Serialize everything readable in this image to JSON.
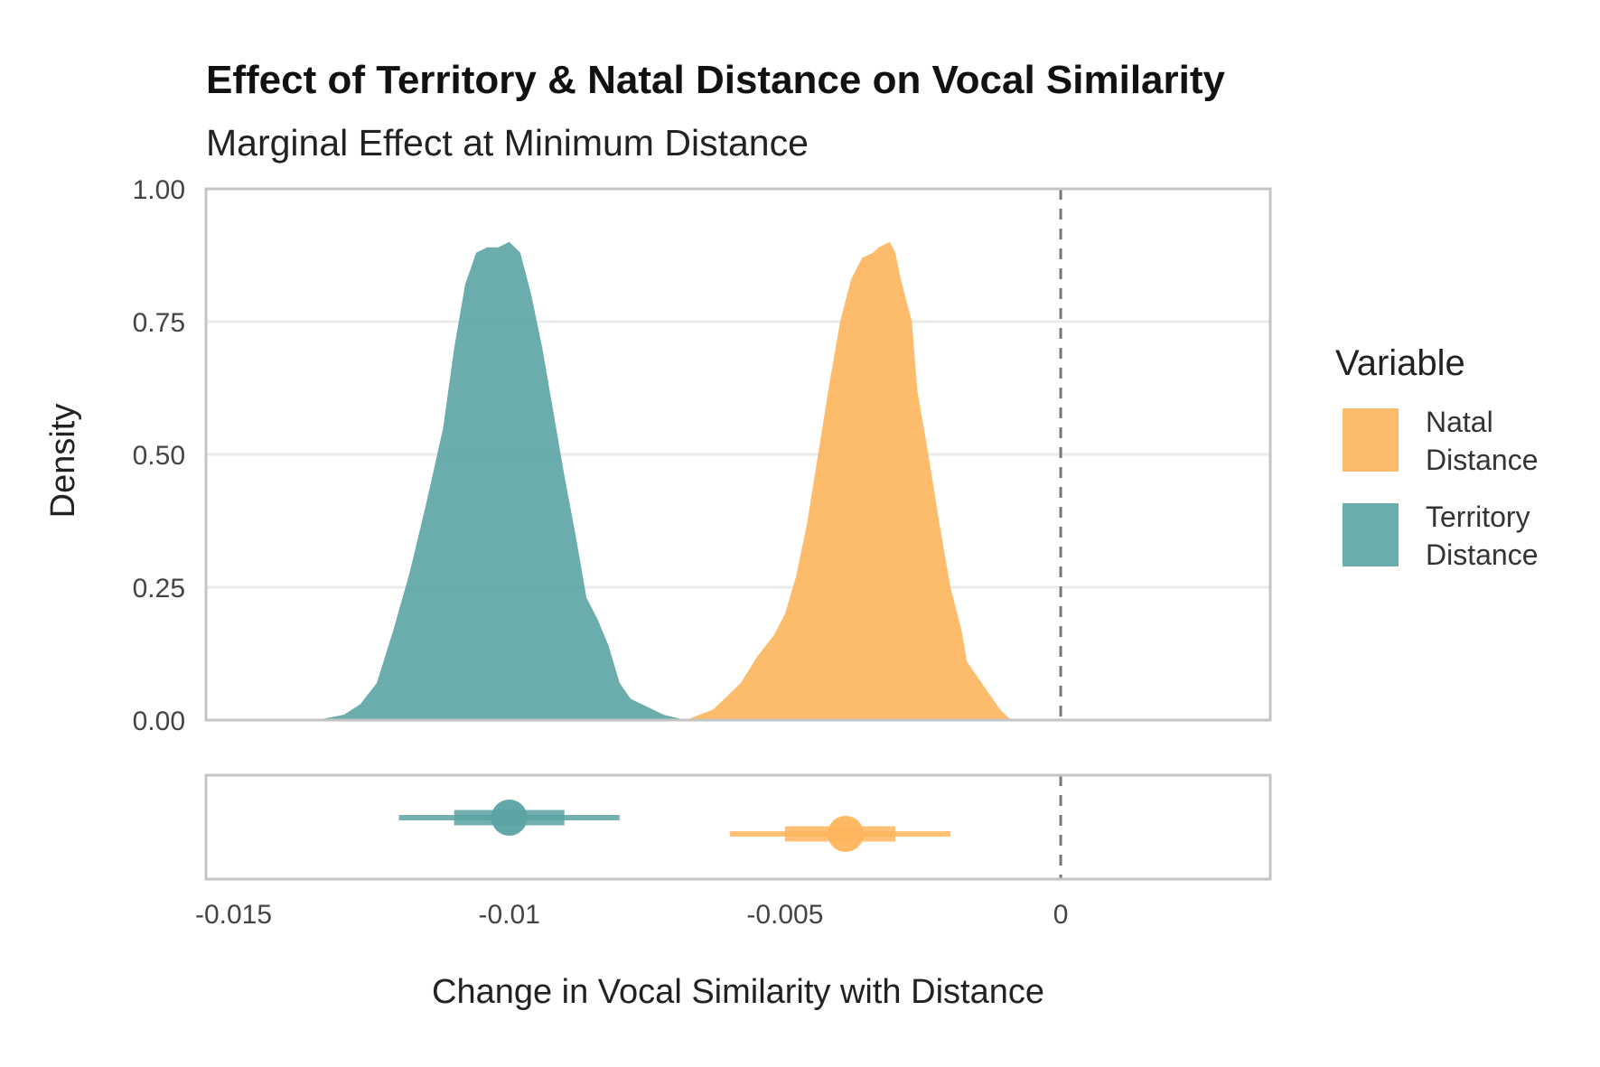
{
  "chart_data": {
    "type": "area",
    "title": "Effect of Territory & Natal Distance on Vocal Similarity",
    "subtitle": "Marginal Effect at Minimum Distance",
    "xlabel": "Change in Vocal Similarity with Distance",
    "ylabel": "Density",
    "xlim": [
      -0.0155,
      0.0038
    ],
    "ylim": [
      0,
      1
    ],
    "x_ticks": [
      {
        "value": -0.015,
        "label": "-0.015"
      },
      {
        "value": -0.01,
        "label": "-0.01"
      },
      {
        "value": -0.005,
        "label": "-0.005"
      },
      {
        "value": 0,
        "label": "0"
      }
    ],
    "y_ticks": [
      {
        "value": 0,
        "label": "0.00"
      },
      {
        "value": 0.25,
        "label": "0.25"
      },
      {
        "value": 0.5,
        "label": "0.50"
      },
      {
        "value": 0.75,
        "label": "0.75"
      },
      {
        "value": 1,
        "label": "1.00"
      }
    ],
    "reference_line_x": 0,
    "grid": true,
    "legend_title": "Variable",
    "legend_position": "right",
    "series": [
      {
        "name": "Natal Distance",
        "legend_lines": [
          "Natal",
          "Distance"
        ],
        "color": "#fdb55c",
        "density": [
          [
            -0.0068,
            0.0
          ],
          [
            -0.0063,
            0.02
          ],
          [
            -0.0058,
            0.07
          ],
          [
            -0.0055,
            0.12
          ],
          [
            -0.0052,
            0.16
          ],
          [
            -0.005,
            0.2
          ],
          [
            -0.0048,
            0.27
          ],
          [
            -0.0046,
            0.37
          ],
          [
            -0.0044,
            0.5
          ],
          [
            -0.0042,
            0.63
          ],
          [
            -0.004,
            0.75
          ],
          [
            -0.0038,
            0.83
          ],
          [
            -0.0036,
            0.87
          ],
          [
            -0.0034,
            0.88
          ],
          [
            -0.0033,
            0.89
          ],
          [
            -0.0031,
            0.9
          ],
          [
            -0.003,
            0.88
          ],
          [
            -0.0029,
            0.83
          ],
          [
            -0.0027,
            0.75
          ],
          [
            -0.0026,
            0.62
          ],
          [
            -0.0024,
            0.5
          ],
          [
            -0.0022,
            0.37
          ],
          [
            -0.002,
            0.25
          ],
          [
            -0.0018,
            0.17
          ],
          [
            -0.0017,
            0.11
          ],
          [
            -0.0015,
            0.08
          ],
          [
            -0.0013,
            0.05
          ],
          [
            -0.0011,
            0.02
          ],
          [
            -0.0009,
            0.0
          ]
        ],
        "point": -0.0039,
        "interval_66": [
          -0.005,
          -0.003
        ],
        "interval_95": [
          -0.006,
          -0.002
        ]
      },
      {
        "name": "Territory Distance",
        "legend_lines": [
          "Territory",
          "Distance"
        ],
        "color": "#5ba3a3",
        "density": [
          [
            -0.0135,
            0.0
          ],
          [
            -0.013,
            0.01
          ],
          [
            -0.0127,
            0.03
          ],
          [
            -0.0124,
            0.07
          ],
          [
            -0.0121,
            0.17
          ],
          [
            -0.0118,
            0.28
          ],
          [
            -0.0115,
            0.41
          ],
          [
            -0.0112,
            0.55
          ],
          [
            -0.011,
            0.7
          ],
          [
            -0.0108,
            0.82
          ],
          [
            -0.0106,
            0.88
          ],
          [
            -0.0104,
            0.89
          ],
          [
            -0.0102,
            0.89
          ],
          [
            -0.01,
            0.9
          ],
          [
            -0.0098,
            0.88
          ],
          [
            -0.0096,
            0.8
          ],
          [
            -0.0094,
            0.7
          ],
          [
            -0.0092,
            0.58
          ],
          [
            -0.009,
            0.46
          ],
          [
            -0.0088,
            0.35
          ],
          [
            -0.0086,
            0.23
          ],
          [
            -0.0084,
            0.19
          ],
          [
            -0.0082,
            0.14
          ],
          [
            -0.008,
            0.07
          ],
          [
            -0.0078,
            0.04
          ],
          [
            -0.0075,
            0.025
          ],
          [
            -0.0072,
            0.01
          ],
          [
            -0.0068,
            0.0
          ]
        ],
        "point": -0.01,
        "interval_66": [
          -0.011,
          -0.009
        ],
        "interval_95": [
          -0.012,
          -0.008
        ]
      }
    ]
  }
}
